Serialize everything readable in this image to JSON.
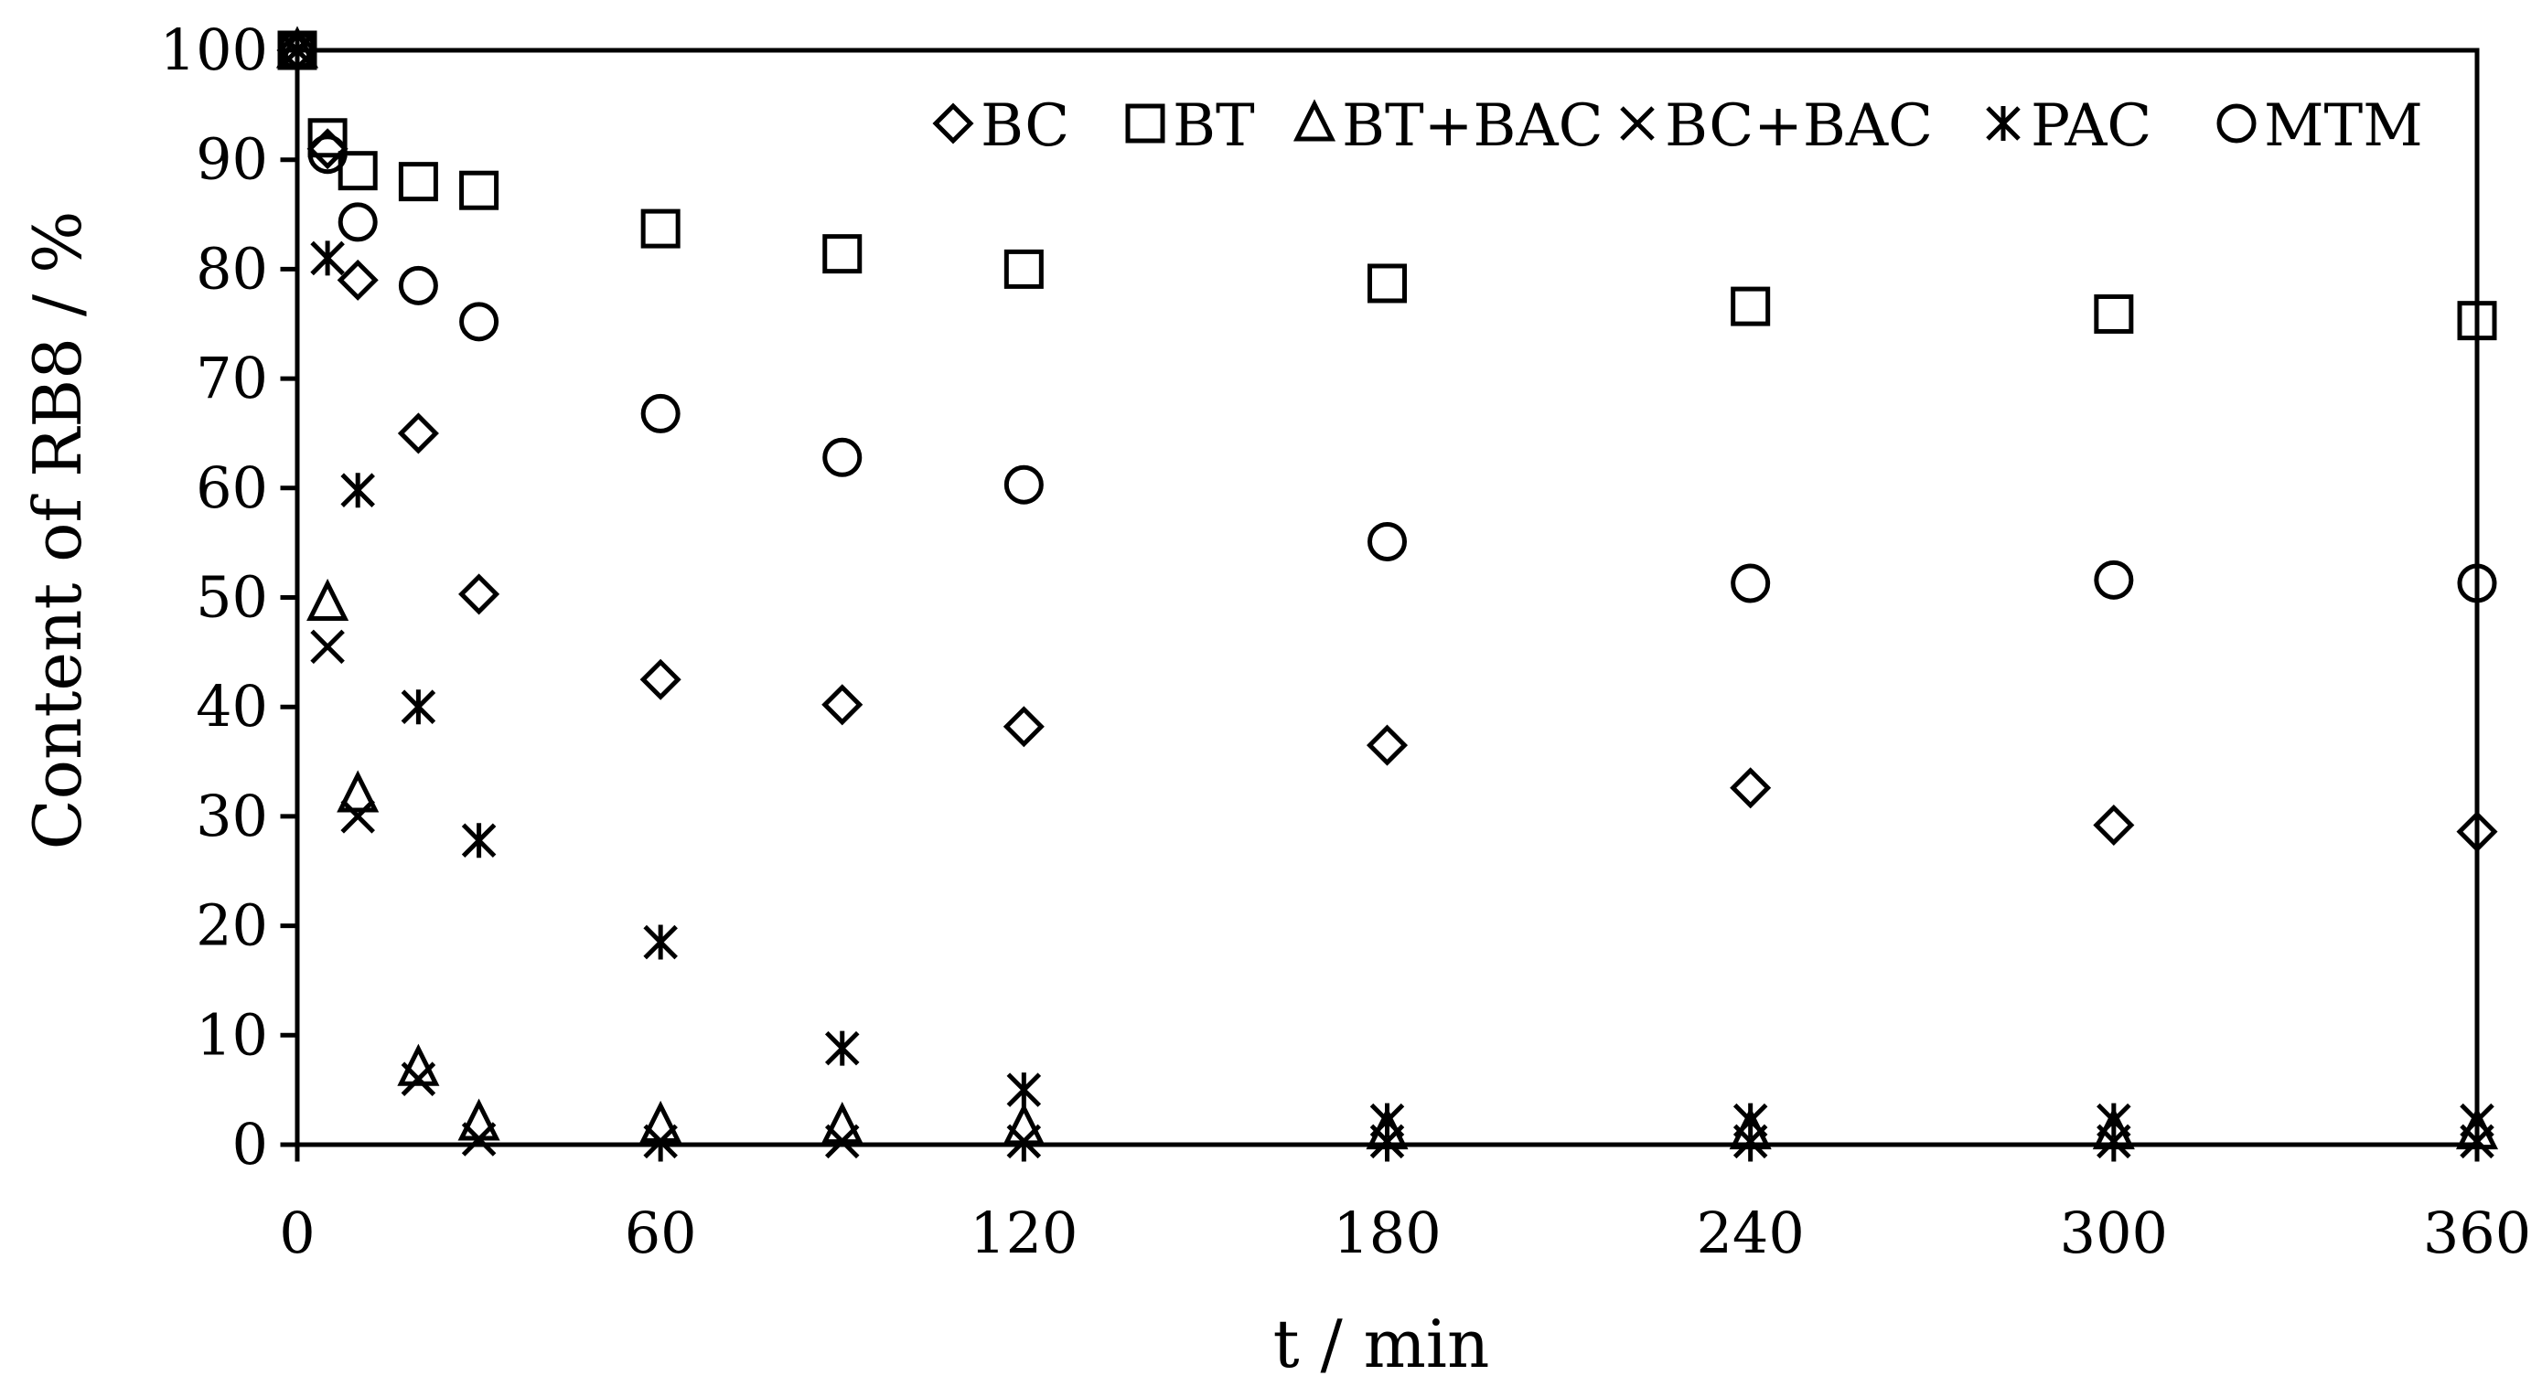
{
  "chart_data": {
    "type": "scatter",
    "title": "",
    "xlabel": "t / min",
    "ylabel": "Content of RB8 / %",
    "xlim": [
      0,
      360
    ],
    "ylim": [
      0,
      100
    ],
    "xticks": [
      0,
      60,
      120,
      180,
      240,
      300,
      360
    ],
    "yticks": [
      0,
      10,
      20,
      30,
      40,
      50,
      60,
      70,
      80,
      90,
      100
    ],
    "grid": false,
    "legend_position": "top-right",
    "series": [
      {
        "name": "BC",
        "marker": "diamond",
        "x": [
          0,
          5,
          10,
          20,
          30,
          60,
          90,
          120,
          180,
          240,
          300,
          360
        ],
        "y": [
          100,
          91,
          79,
          65,
          50.3,
          42.5,
          40.2,
          38.2,
          36.5,
          32.6,
          29.2,
          28.6
        ]
      },
      {
        "name": "BT",
        "marker": "square",
        "x": [
          0,
          5,
          10,
          20,
          30,
          60,
          90,
          120,
          180,
          240,
          300,
          360
        ],
        "y": [
          100,
          92,
          89,
          88,
          87.2,
          83.7,
          81.4,
          80,
          78.7,
          76.6,
          75.9,
          75.3
        ]
      },
      {
        "name": "BT+BAC",
        "marker": "triangle",
        "x": [
          0,
          5,
          10,
          20,
          30,
          60,
          90,
          120,
          180,
          240,
          300,
          360
        ],
        "y": [
          100,
          49.5,
          32,
          7,
          2,
          1.8,
          1.7,
          1.6,
          1.2,
          1.2,
          1.2,
          1.2
        ]
      },
      {
        "name": "BC+BAC",
        "marker": "x",
        "x": [
          0,
          5,
          10,
          20,
          30,
          60,
          90,
          120,
          180,
          240,
          300,
          360
        ],
        "y": [
          100,
          45.5,
          30,
          6,
          0.5,
          0.3,
          0.3,
          0.3,
          0.3,
          0.3,
          0.3,
          0.3
        ]
      },
      {
        "name": "PAC",
        "marker": "asterisk",
        "x": [
          0,
          5,
          10,
          20,
          30,
          60,
          90,
          120,
          180,
          240,
          300,
          360
        ],
        "y": [
          100,
          81,
          59.8,
          40,
          27.8,
          18.5,
          8.8,
          5,
          2.2,
          2.2,
          2.2,
          2.2
        ]
      },
      {
        "name": "MTM",
        "marker": "circle",
        "x": [
          0,
          5,
          10,
          20,
          30,
          60,
          90,
          120,
          180,
          240,
          300,
          360
        ],
        "y": [
          100,
          90.5,
          84.3,
          78.5,
          75.2,
          66.8,
          62.8,
          60.3,
          55.1,
          51.3,
          51.6,
          51.3
        ]
      }
    ]
  }
}
